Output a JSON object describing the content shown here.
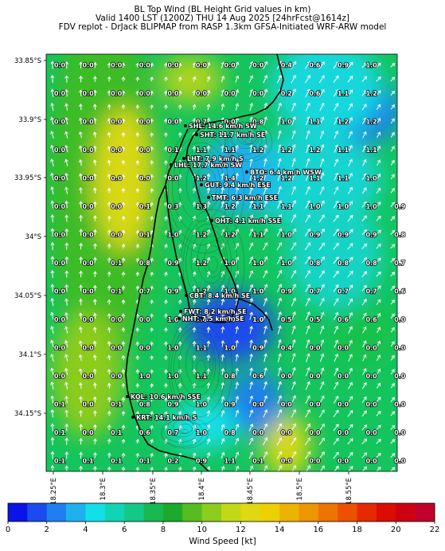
{
  "title": {
    "line1": "BL Top Wind (BL Height Grid values in km)",
    "line2": "Valid 1400 LST (1200Z) THU 14 Aug 2025 [24hrFcst@1614z]",
    "line3": "FDV replot - DrJack BLIPMAP from RASP 1.3km GFSA-Initiated WRF-ARW model"
  },
  "lat_labels": [
    "33.85°S",
    "33.9°S",
    "33.95°S",
    "34°S",
    "34.05°S",
    "34.1°S",
    "34.15°S"
  ],
  "lon_labels": [
    "18.25°E",
    "18.3°E",
    "18.35°E",
    "18.4°E",
    "18.45°E",
    "18.5°E",
    "18.55°E"
  ],
  "grid_values": [
    [
      "0.0",
      "0.0",
      "0.0",
      "0.0",
      "0.0",
      "0.0",
      "0.0",
      "0.0",
      "0.4",
      "0.6",
      "0.9",
      "1.0",
      ""
    ],
    [
      "0.0",
      "0.0",
      "0.0",
      "0.0",
      "0.0",
      "0.0",
      "0.0",
      "0.0",
      "0.2",
      "0.6",
      "1.1",
      "1.2",
      ""
    ],
    [
      "0.0",
      "0.0",
      "0.0",
      "0.0",
      "0.0",
      "0.7",
      "0.0",
      "0.8",
      "1.0",
      "1.1",
      "1.2",
      "1.2",
      ""
    ],
    [
      "0.0",
      "0.0",
      "0.0",
      "0.0",
      "0.1",
      "1.1",
      "1.1",
      "1.2",
      "1.2",
      "1.2",
      "1.1",
      "1.1",
      ""
    ],
    [
      "0.0",
      "0.0",
      "0.0",
      "0.0",
      "0.0",
      "1.2",
      "1.4",
      "1.2",
      "1.2",
      "1.1",
      "1.1",
      "1.0",
      ""
    ],
    [
      "0.0",
      "0.0",
      "0.0",
      "0.1",
      "0.3",
      "1.3",
      "1.2",
      "1.1",
      "1.1",
      "1.0",
      "1.0",
      "1.0",
      "0.9"
    ],
    [
      "0.0",
      "0.0",
      "0.0",
      "0.1",
      "1.0",
      "1.2",
      "1.2",
      "1.1",
      "1.0",
      "0.9",
      "0.9",
      "0.9",
      "0.8"
    ],
    [
      "0.0",
      "0.0",
      "0.1",
      "0.8",
      "0.9",
      "1.2",
      "1.0",
      "1.0",
      "1.0",
      "0.8",
      "0.8",
      "0.8",
      "0.7"
    ],
    [
      "0.0",
      "0.0",
      "0.1",
      "0.7",
      "0.9",
      "1.2",
      "1.0",
      "1.0",
      "0.9",
      "0.7",
      "0.7",
      "0.7",
      "0.6"
    ],
    [
      "0.0",
      "0.0",
      "0.0",
      "0.0",
      "1.0",
      "1.0",
      "1.0",
      "1.0",
      "0.5",
      "0.5",
      "0.6",
      "0.6",
      "0.0"
    ],
    [
      "0.0",
      "0.0",
      "0.0",
      "0.0",
      "1.0",
      "1.1",
      "1.0",
      "0.9",
      "0.4",
      "0.0",
      "0.0",
      "0.0",
      "0.0"
    ],
    [
      "0.0",
      "0.0",
      "0.0",
      "1.0",
      "1.0",
      "1.1",
      "0.8",
      "0.6",
      "0.0",
      "0.0",
      "0.0",
      "0.0",
      "0.0"
    ],
    [
      "0.1",
      "0.0",
      "0.1",
      "0.8",
      "0.9",
      "1.0",
      "0.9",
      "0.0",
      "0.0",
      "0.0",
      "0.0",
      "0.0",
      "0.0"
    ],
    [
      "0.1",
      "0.0",
      "0.1",
      "0.6",
      "0.7",
      "1.0",
      "0.8",
      "0.0",
      "0.0",
      "0.0",
      "0.0",
      "0.0",
      "0.0"
    ],
    [
      "0.1",
      "0.1",
      "0.1",
      "0.1",
      "0.2",
      "0.9",
      "1.1",
      "0.1",
      "0.0",
      "0.0",
      "0.0",
      "0.0",
      "0.0"
    ]
  ],
  "stations": [
    {
      "label": "SHL: 14.6 km/h SW"
    },
    {
      "label": "SHT: 11.7 km/h SE"
    },
    {
      "label": "LHT: 7.9 km/h S"
    },
    {
      "label": "LHL: 17.7 km/h SW"
    },
    {
      "label": "BTO: 6.4 km/h WSW"
    },
    {
      "label": "GUT: 9.4 km/h ESE"
    },
    {
      "label": "TMT: 6.3 km/h ESE"
    },
    {
      "label": "OHT: 4.1 km/h SSE"
    },
    {
      "label": "CBT: 8.4 km/h SE"
    },
    {
      "label": "FWT: 8.2 km/h SE"
    },
    {
      "label": "NHT: 7.5 km/h SE"
    },
    {
      "label": "KOL: 10.6 km/h SSE"
    },
    {
      "label": "KRT: 14.1 km/h S"
    }
  ],
  "colorbar": {
    "label": "Wind Speed [kt]",
    "ticks": [
      "0",
      "2",
      "4",
      "6",
      "8",
      "10",
      "12",
      "14",
      "16",
      "18",
      "20",
      "22"
    ],
    "colors": [
      "#0a14e6",
      "#1a4ced",
      "#1f7fee",
      "#1fb0ee",
      "#12e0e8",
      "#10d4b4",
      "#14c888",
      "#18b850",
      "#1caa2c",
      "#56bc20",
      "#8ccc1a",
      "#c0d818",
      "#e0d810",
      "#ecd000",
      "#ecb400",
      "#ec9600",
      "#ec7400",
      "#ec5000",
      "#e62a00",
      "#dc0c00",
      "#cc0010",
      "#c0002c"
    ]
  }
}
